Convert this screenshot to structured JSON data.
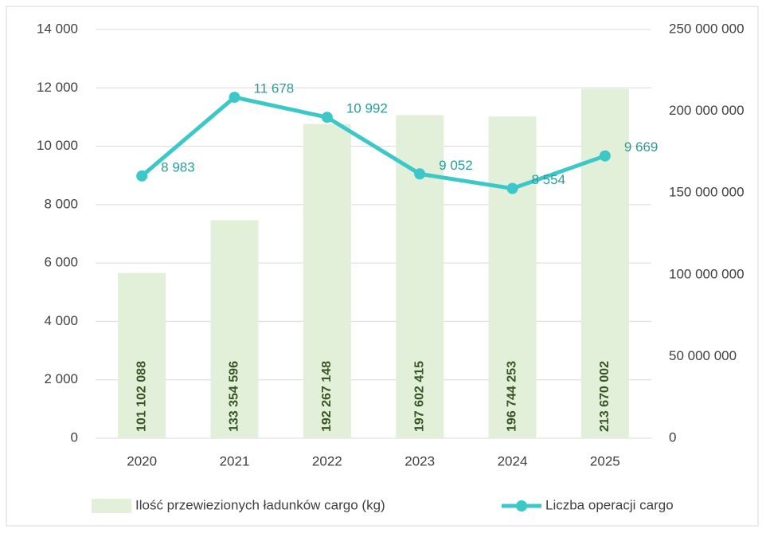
{
  "chart_data": {
    "type": "bar-line",
    "categories": [
      "2020",
      "2021",
      "2022",
      "2023",
      "2024",
      "2025"
    ],
    "series": [
      {
        "name": "Ilość przewiezionych ładunków cargo (kg)",
        "type": "bar",
        "axis": "y2",
        "color": "#e2efd9",
        "values": [
          101102088,
          133354596,
          192267148,
          197602415,
          196744253,
          213670002
        ],
        "value_labels": [
          "101 102 088",
          "133 354 596",
          "192 267 148",
          "197 602 415",
          "196 744 253",
          "213 670 002"
        ]
      },
      {
        "name": "Liczba operacji cargo",
        "type": "line",
        "axis": "y",
        "color": "#3cc8c8",
        "values": [
          8983,
          11678,
          10992,
          9052,
          8554,
          9669
        ],
        "value_labels": [
          "8 983",
          "11 678",
          "10 992",
          "9 052",
          "8 554",
          "9 669"
        ]
      }
    ],
    "ylim": [
      0,
      14000
    ],
    "yticks": [
      0,
      {
        "value": 2000,
        "label": "2 000"
      },
      {
        "value": 4000,
        "label": "4 000"
      },
      {
        "value": 6000,
        "label": "6 000"
      },
      {
        "value": 8000,
        "label": "8 000"
      },
      {
        "value": 10000,
        "label": "10 000"
      },
      {
        "value": 12000,
        "label": "12 000"
      },
      {
        "value": 14000,
        "label": "14 000"
      }
    ],
    "y2lim": [
      0,
      250000000
    ],
    "y2ticks": [
      0,
      {
        "value": 50000000,
        "label": "50 000 000"
      },
      {
        "value": 100000000,
        "label": "100 000 000"
      },
      {
        "value": 150000000,
        "label": "150 000 000"
      },
      {
        "value": 200000000,
        "label": "200 000 000"
      },
      {
        "value": 250000000,
        "label": "250 000 000"
      }
    ],
    "grid": true,
    "legend": "bottom"
  }
}
